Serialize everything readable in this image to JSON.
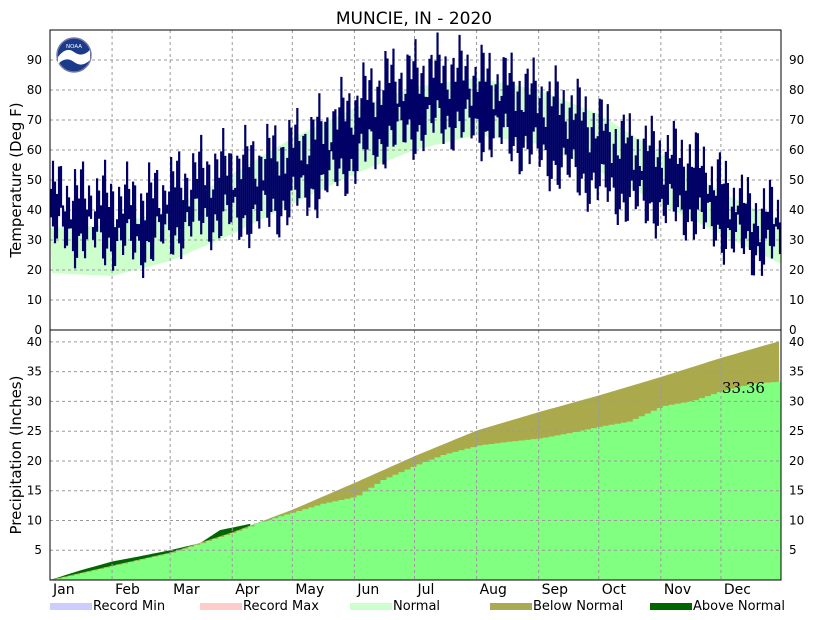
{
  "chart_data": [
    {
      "type": "line",
      "title": "MUNCIE, IN - 2020",
      "ylabel": "Temperature (Deg F)",
      "ylim": [
        0,
        100
      ],
      "yticks": [
        0,
        10,
        20,
        30,
        40,
        50,
        60,
        70,
        80,
        90
      ],
      "months": [
        "Jan",
        "Feb",
        "Mar",
        "Apr",
        "May",
        "Jun",
        "Jul",
        "Aug",
        "Sep",
        "Oct",
        "Nov",
        "Dec"
      ],
      "grid": true,
      "observed_color": "#000066",
      "normal_color": "#ccffcc",
      "observed_monthly": [
        {
          "month": "Jan",
          "high": 46,
          "low": 30
        },
        {
          "month": "Feb",
          "high": 44,
          "low": 27
        },
        {
          "month": "Mar",
          "high": 54,
          "low": 36
        },
        {
          "month": "Apr",
          "high": 58,
          "low": 37
        },
        {
          "month": "May",
          "high": 68,
          "low": 48
        },
        {
          "month": "Jun",
          "high": 84,
          "low": 63
        },
        {
          "month": "Jul",
          "high": 88,
          "low": 69
        },
        {
          "month": "Aug",
          "high": 83,
          "low": 63
        },
        {
          "month": "Sep",
          "high": 75,
          "low": 52
        },
        {
          "month": "Oct",
          "high": 62,
          "low": 42
        },
        {
          "month": "Nov",
          "high": 58,
          "low": 38
        },
        {
          "month": "Dec",
          "high": 40,
          "low": 26
        }
      ],
      "normal_band": {
        "x": [
          0,
          31,
          60,
          91,
          121,
          152,
          182,
          213,
          244,
          274,
          305,
          335,
          365
        ],
        "high": [
          34,
          35,
          40,
          52,
          64,
          74,
          81,
          84,
          80,
          72,
          59,
          46,
          36
        ],
        "low": [
          19,
          18,
          23,
          32,
          42,
          52,
          60,
          65,
          62,
          53,
          42,
          32,
          22
        ]
      }
    },
    {
      "type": "area",
      "ylabel": "Precipitation (Inches)",
      "ylim": [
        0,
        42
      ],
      "yticks": [
        5,
        10,
        15,
        20,
        25,
        30,
        35,
        40
      ],
      "grid": true,
      "annotation": "33.36",
      "series": [
        {
          "name": "Observed",
          "color": "#80ff80",
          "x": [
            0,
            15,
            31,
            45,
            60,
            75,
            85,
            91,
            105,
            121,
            135,
            152,
            165,
            182,
            195,
            213,
            230,
            244,
            260,
            274,
            288,
            305,
            320,
            335,
            350,
            365
          ],
          "values": [
            0,
            1.6,
            3.1,
            4.0,
            5.0,
            6.2,
            8.4,
            8.8,
            9.8,
            11.4,
            12.8,
            14.0,
            16.8,
            19.3,
            21.0,
            22.6,
            23.3,
            23.8,
            24.8,
            25.8,
            26.6,
            29.2,
            30.1,
            31.8,
            33.0,
            33.36
          ]
        },
        {
          "name": "Normal",
          "color": "#aaaa4d",
          "x": [
            0,
            31,
            60,
            91,
            121,
            152,
            182,
            213,
            244,
            274,
            305,
            335,
            365
          ],
          "values": [
            0,
            2.4,
            4.6,
            8.0,
            11.8,
            16.3,
            20.8,
            25.1,
            28.2,
            31.0,
            34.1,
            37.3,
            40.2
          ]
        }
      ]
    }
  ],
  "legend": [
    {
      "label": "Record Min",
      "color": "#ccccff"
    },
    {
      "label": "Record Max",
      "color": "#ffcccc"
    },
    {
      "label": "Normal",
      "color": "#ccffcc"
    },
    {
      "label": "Below Normal",
      "color": "#aaaa55"
    },
    {
      "label": "Above Normal",
      "color": "#006600"
    }
  ],
  "logo_text": "NOAA"
}
